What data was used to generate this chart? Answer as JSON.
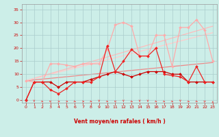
{
  "background_color": "#cceee8",
  "grid_color": "#aacccc",
  "xlabel": "Vent moyen/en rafales ( km/h )",
  "ylabel_ticks": [
    0,
    5,
    10,
    15,
    20,
    25,
    30,
    35
  ],
  "ylim": [
    -1,
    37
  ],
  "xlim": [
    -0.5,
    23.5
  ],
  "line_dark_red": {
    "x": [
      0,
      1,
      2,
      3,
      4,
      5,
      6,
      7,
      8,
      9,
      10,
      11,
      12,
      13,
      14,
      15,
      16,
      17,
      18,
      19,
      20,
      21,
      22,
      23
    ],
    "y": [
      0,
      7,
      7,
      7,
      5,
      7,
      7,
      7,
      8,
      9,
      10,
      11,
      10,
      9,
      10,
      11,
      11,
      11,
      10,
      10,
      7,
      7,
      7,
      7
    ],
    "color": "#cc0000",
    "linewidth": 0.9,
    "marker": "D",
    "markersize": 2.0
  },
  "line_medium_red": {
    "x": [
      0,
      1,
      2,
      3,
      4,
      5,
      6,
      7,
      8,
      9,
      10,
      11,
      12,
      13,
      14,
      15,
      16,
      17,
      18,
      19,
      20,
      21,
      22,
      23
    ],
    "y": [
      0,
      7,
      7,
      4,
      2.5,
      4.5,
      7,
      7,
      7,
      9,
      21,
      11,
      15,
      19.5,
      17,
      17,
      20,
      10,
      9.5,
      9,
      7,
      13,
      7,
      7
    ],
    "color": "#ee2222",
    "linewidth": 0.9,
    "marker": "D",
    "markersize": 2.0
  },
  "line_light_pink": {
    "x": [
      0,
      1,
      2,
      3,
      4,
      5,
      6,
      7,
      8,
      9,
      10,
      11,
      12,
      13,
      14,
      15,
      16,
      17,
      18,
      19,
      20,
      21,
      22,
      23
    ],
    "y": [
      7.5,
      7,
      7,
      14,
      14,
      13.5,
      13,
      14,
      14,
      14,
      19.5,
      29,
      30,
      28.5,
      17,
      17,
      25,
      25,
      13,
      28,
      28,
      31,
      27,
      15
    ],
    "color": "#ffaaaa",
    "linewidth": 0.9,
    "marker": "D",
    "markersize": 2.0
  },
  "trend1": {
    "x": [
      0,
      23
    ],
    "y": [
      7.5,
      14.5
    ],
    "color": "#ee8888",
    "linewidth": 0.9
  },
  "trend2": {
    "x": [
      0,
      23
    ],
    "y": [
      7.5,
      28.5
    ],
    "color": "#ffbbbb",
    "linewidth": 0.9
  },
  "trend3": {
    "x": [
      0,
      23
    ],
    "y": [
      7.5,
      26.0
    ],
    "color": "#ffcccc",
    "linewidth": 0.9
  },
  "wind_angles": [
    90,
    0,
    45,
    225,
    90,
    90,
    45,
    90,
    45,
    0,
    45,
    225,
    0,
    45,
    0,
    0,
    45,
    45,
    45,
    0,
    45,
    45,
    135,
    180
  ],
  "x_ticks": [
    0,
    1,
    2,
    3,
    4,
    5,
    6,
    7,
    8,
    9,
    10,
    11,
    12,
    13,
    14,
    15,
    16,
    17,
    18,
    19,
    20,
    21,
    22,
    23
  ]
}
